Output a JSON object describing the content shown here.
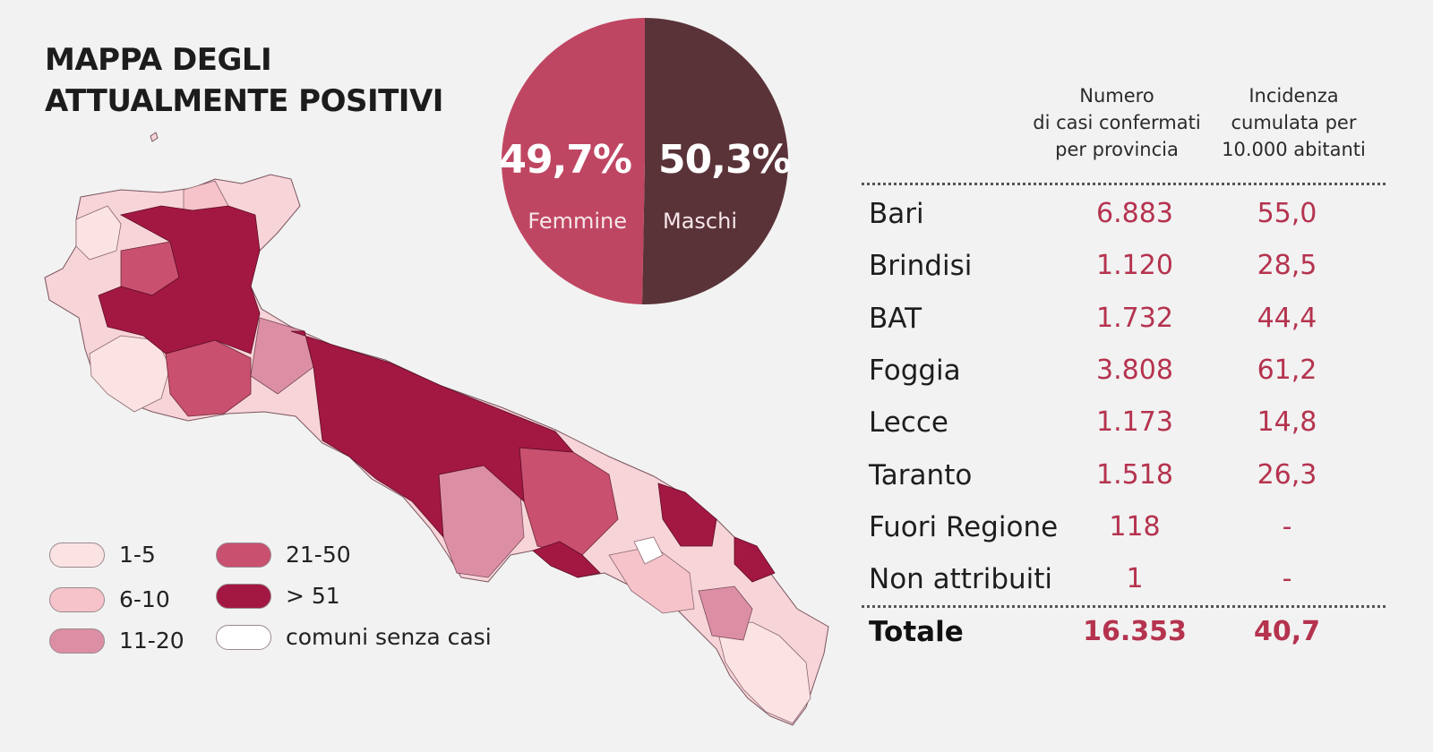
{
  "title": {
    "line1": "MAPPA DEGLI",
    "line2": "ATTUALMENTE POSITIVI"
  },
  "gender": {
    "female": {
      "label": "Femmine",
      "pct_text": "49,7%",
      "value": 49.7,
      "color": "#bf4662"
    },
    "male": {
      "label": "Maschi",
      "pct_text": "50,3%",
      "value": 50.3,
      "color": "#5a3338"
    }
  },
  "legend": [
    {
      "label": "1-5",
      "color": "#fbe3e3"
    },
    {
      "label": "6-10",
      "color": "#f5c3c9"
    },
    {
      "label": "11-20",
      "color": "#dc8fa4"
    },
    {
      "label": "21-50",
      "color": "#c9506f"
    },
    {
      "label": "> 51",
      "color": "#a31842"
    },
    {
      "label": "comuni senza casi",
      "color": "#ffffff"
    }
  ],
  "table": {
    "header_cases": "Numero di casi confermati per provincia",
    "header_cases_lines": [
      "Numero",
      "di casi confermati",
      "per provincia"
    ],
    "header_incidence_lines": [
      "Incidenza",
      "cumulata per",
      "10.000 abitanti"
    ],
    "rows": [
      {
        "name": "Bari",
        "cases": "6.883",
        "incidence": "55,0"
      },
      {
        "name": "Brindisi",
        "cases": "1.120",
        "incidence": "28,5"
      },
      {
        "name": "BAT",
        "cases": "1.732",
        "incidence": "44,4"
      },
      {
        "name": "Foggia",
        "cases": "3.808",
        "incidence": "61,2"
      },
      {
        "name": "Lecce",
        "cases": "1.173",
        "incidence": "14,8"
      },
      {
        "name": "Taranto",
        "cases": "1.518",
        "incidence": "26,3"
      },
      {
        "name": "Fuori Regione",
        "cases": "118",
        "incidence": "-"
      },
      {
        "name": "Non attribuiti",
        "cases": "1",
        "incidence": "-"
      }
    ],
    "total": {
      "name": "Totale",
      "cases": "16.353",
      "incidence": "40,7"
    }
  },
  "colors": {
    "accent": "#b5334f",
    "background": "#f2f2f2"
  }
}
